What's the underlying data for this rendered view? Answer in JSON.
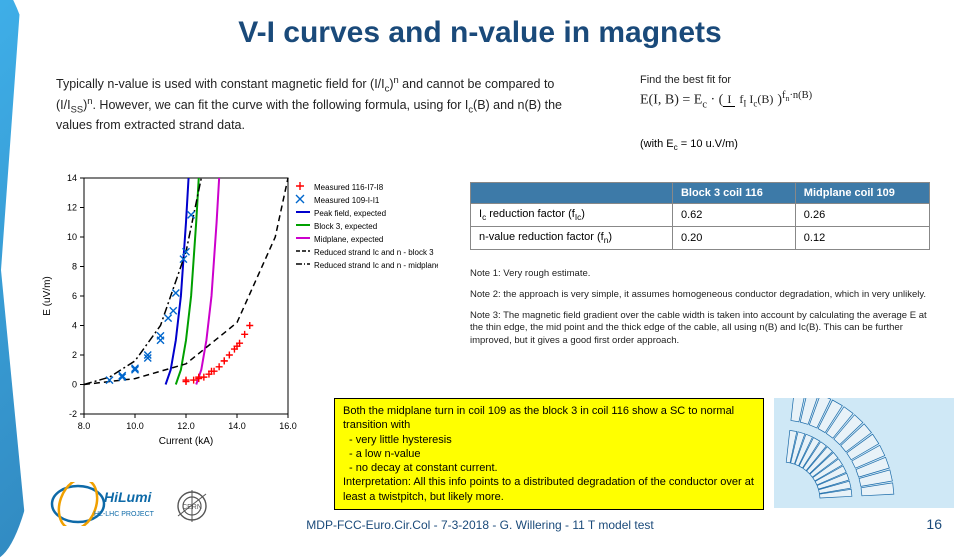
{
  "title": "V-I curves and n-value in magnets",
  "intro_html": "Typically n-value is used with constant magnetic field for (I/I<sub>c</sub>)<sup>n</sup> and cannot be compared to (I/I<sub>SS</sub>)<sup>n</sup>. However, we can fit the curve with the following formula, using for I<sub>c</sub>(B) and n(B) the values from extracted strand data.",
  "fit_label": "Find the best fit for",
  "formula_html": "E(I, B) = E<sub>c</sub> · (<span class='frac'><span class='num'>I</span><span class='den'>f<sub>I</sub> I<sub>c</sub>(B)</span></span>)<sup>f<sub>n</sub>·n(B)</sup>",
  "with_ec_html": "(with E<sub>c</sub> = 10 u.V/m)",
  "table": {
    "columns": [
      "",
      "Block 3 coil 116",
      "Midplane coil 109"
    ],
    "rows": [
      [
        "I<sub>c</sub> reduction factor (f<sub>Ic</sub>)",
        "0.62",
        "0.26"
      ],
      [
        "n-value reduction factor (f<sub>n</sub>)",
        "0.20",
        "0.12"
      ]
    ],
    "header_bg": "#3d7aa8",
    "header_color": "#ffffff",
    "border_color": "#888888"
  },
  "notes": {
    "n1": "Note 1: Very rough estimate.",
    "n2": "Note 2: the approach is very simple, it assumes homogeneous conductor degradation, which in very unlikely.",
    "n3": "Note 3: The magnetic field gradient over the cable width is taken into account by calculating the average E at the thin edge, the mid point and the thick edge of the cable, all using n(B) and Ic(B). This can be further improved, but it gives a good first order approach."
  },
  "callout": {
    "lead": "Both the midplane turn in coil 109 as the block 3 in coil 116 show a SC to normal transition with",
    "items": [
      "very little hysteresis",
      "a low n-value",
      "no decay at constant current."
    ],
    "tail": "Interpretation: All this info points to a distributed degradation of the conductor over at least a twistpitch, but likely more.",
    "bg": "#ffff00"
  },
  "chart": {
    "type": "line+scatter",
    "xlabel": "Current (kA)",
    "ylabel": "E (uV/m)",
    "xlim": [
      8.0,
      16.0
    ],
    "xtick_step": 2.0,
    "ylim": [
      -2,
      14
    ],
    "ytick_step": 2,
    "label_fontsize": 10,
    "tick_fontsize": 9,
    "background_color": "#ffffff",
    "axis_color": "#000000",
    "legend": {
      "position": "top-right",
      "fontsize": 8,
      "entries": [
        {
          "label": "Measured 116-I7-I8",
          "marker": "+",
          "color": "#ff0000"
        },
        {
          "label": "Measured 109-I-I1",
          "marker": "x",
          "color": "#0066cc"
        },
        {
          "label": "Peak field, expected",
          "marker": "line",
          "color": "#0000cc"
        },
        {
          "label": "Block 3, expected",
          "marker": "line",
          "color": "#00a000"
        },
        {
          "label": "Midplane, expected",
          "marker": "line",
          "color": "#cc00cc"
        },
        {
          "label": "Reduced strand Ic and n - block 3",
          "marker": "dash",
          "color": "#000000"
        },
        {
          "label": "Reduced strand Ic and n - midplane",
          "marker": "dashdot",
          "color": "#000000"
        }
      ]
    },
    "series": [
      {
        "name": "peak-field-expected",
        "color": "#0000cc",
        "style": "solid",
        "width": 2,
        "x": [
          11.2,
          11.4,
          11.6,
          11.8,
          12.0,
          12.1
        ],
        "y": [
          0,
          1,
          3,
          6,
          11,
          14
        ]
      },
      {
        "name": "block3-expected",
        "color": "#00a000",
        "style": "solid",
        "width": 2,
        "x": [
          11.6,
          11.8,
          12.0,
          12.2,
          12.4,
          12.5
        ],
        "y": [
          0,
          1,
          3,
          6,
          11,
          14
        ]
      },
      {
        "name": "midplane-expected",
        "color": "#cc00cc",
        "style": "solid",
        "width": 2,
        "x": [
          12.4,
          12.6,
          12.8,
          13.0,
          13.2,
          13.3
        ],
        "y": [
          0,
          1,
          3,
          6,
          11,
          14
        ]
      },
      {
        "name": "reduced-midplane",
        "color": "#000000",
        "style": "dashdot",
        "width": 1.5,
        "x": [
          8.0,
          9.0,
          10.0,
          11.0,
          12.0,
          12.6
        ],
        "y": [
          0,
          0.5,
          1.6,
          4,
          9,
          14
        ]
      },
      {
        "name": "reduced-block3",
        "color": "#000000",
        "style": "dash",
        "width": 1.5,
        "x": [
          8.0,
          10.0,
          12.0,
          14.0,
          15.5,
          16.0
        ],
        "y": [
          0,
          0.4,
          1.4,
          4.2,
          10,
          14
        ]
      }
    ],
    "scatter": [
      {
        "name": "measured-116",
        "color": "#ff0000",
        "marker": "+",
        "size": 7,
        "x": [
          12.0,
          12.3,
          12.5,
          12.7,
          12.9,
          13.1,
          13.3,
          13.5,
          13.7,
          13.9,
          14.1,
          14.3,
          14.5,
          14.0,
          13.5,
          13.0,
          12.5,
          12.0
        ],
        "y": [
          0.2,
          0.3,
          0.4,
          0.5,
          0.7,
          0.9,
          1.2,
          1.6,
          2.0,
          2.4,
          2.8,
          3.4,
          4.0,
          2.6,
          1.6,
          0.9,
          0.5,
          0.3
        ]
      },
      {
        "name": "measured-109",
        "color": "#0066cc",
        "marker": "x",
        "size": 7,
        "x": [
          9.0,
          9.5,
          10.0,
          10.5,
          11.0,
          11.3,
          11.6,
          11.9,
          12.2,
          12.0,
          11.5,
          11.0,
          10.5,
          10.0,
          9.5
        ],
        "y": [
          0.3,
          0.6,
          1.1,
          2.0,
          3.3,
          4.5,
          6.2,
          8.5,
          11.5,
          9.0,
          5.0,
          3.0,
          1.8,
          1.0,
          0.5
        ]
      }
    ]
  },
  "coil_diagram": {
    "type": "infographic",
    "background_color": "#cfe8f6",
    "arc_color": "#1a6aa8",
    "lines_color": "#1a6aa8"
  },
  "logos": {
    "hilumi_text1": "HiLumi",
    "hilumi_text2": "HL-LHC PROJECT",
    "hilumi_color": "#0e6aa8",
    "cern_label": "CERN",
    "cern_color": "#555555"
  },
  "footer": "MDP-FCC-Euro.Cir.Col - 7-3-2018 - G. Willering - 11 T model test",
  "page_number": "16"
}
